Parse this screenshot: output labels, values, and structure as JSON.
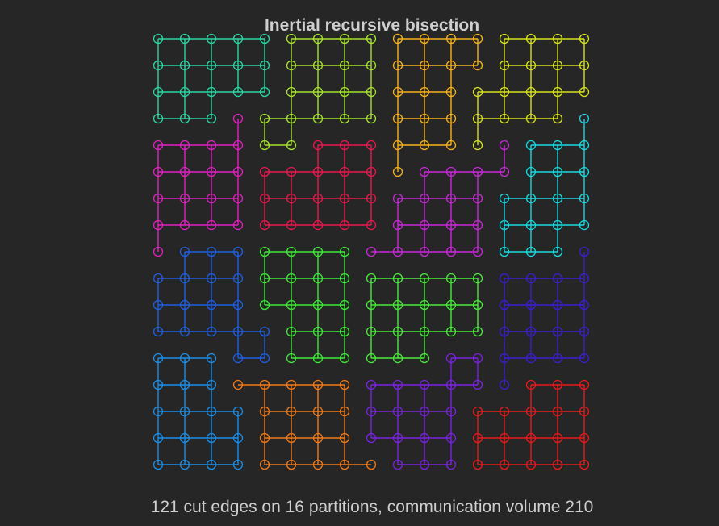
{
  "title": "Inertial recursive  bisection",
  "caption": "121 cut edges on 16 partitions, communication volume 210",
  "grid": {
    "rows": 17,
    "cols": 17
  },
  "partitions": [
    {
      "id": 0,
      "color": "#2bd6a3",
      "cells": [
        [
          0,
          0
        ],
        [
          0,
          1
        ],
        [
          0,
          2
        ],
        [
          0,
          3
        ],
        [
          0,
          4
        ],
        [
          1,
          0
        ],
        [
          1,
          1
        ],
        [
          1,
          2
        ],
        [
          1,
          3
        ],
        [
          1,
          4
        ],
        [
          2,
          0
        ],
        [
          2,
          1
        ],
        [
          2,
          2
        ],
        [
          2,
          3
        ],
        [
          2,
          4
        ],
        [
          3,
          0
        ],
        [
          3,
          1
        ],
        [
          3,
          2
        ]
      ]
    },
    {
      "id": 1,
      "color": "#a6e22e",
      "cells": [
        [
          0,
          5
        ],
        [
          0,
          6
        ],
        [
          0,
          7
        ],
        [
          0,
          8
        ],
        [
          1,
          5
        ],
        [
          1,
          6
        ],
        [
          1,
          7
        ],
        [
          1,
          8
        ],
        [
          2,
          5
        ],
        [
          2,
          6
        ],
        [
          2,
          7
        ],
        [
          2,
          8
        ],
        [
          3,
          4
        ],
        [
          3,
          5
        ],
        [
          3,
          6
        ],
        [
          3,
          7
        ],
        [
          3,
          8
        ],
        [
          4,
          4
        ],
        [
          4,
          5
        ]
      ]
    },
    {
      "id": 2,
      "color": "#f5b21b",
      "cells": [
        [
          0,
          9
        ],
        [
          0,
          10
        ],
        [
          0,
          11
        ],
        [
          0,
          12
        ],
        [
          1,
          9
        ],
        [
          1,
          10
        ],
        [
          1,
          11
        ],
        [
          1,
          12
        ],
        [
          2,
          9
        ],
        [
          2,
          10
        ],
        [
          2,
          11
        ],
        [
          3,
          9
        ],
        [
          3,
          10
        ],
        [
          3,
          11
        ],
        [
          4,
          9
        ],
        [
          4,
          10
        ],
        [
          4,
          11
        ],
        [
          5,
          9
        ]
      ]
    },
    {
      "id": 3,
      "color": "#d6e21c",
      "cells": [
        [
          0,
          13
        ],
        [
          0,
          14
        ],
        [
          0,
          15
        ],
        [
          0,
          16
        ],
        [
          1,
          13
        ],
        [
          1,
          14
        ],
        [
          1,
          15
        ],
        [
          1,
          16
        ],
        [
          2,
          12
        ],
        [
          2,
          13
        ],
        [
          2,
          14
        ],
        [
          2,
          15
        ],
        [
          2,
          16
        ],
        [
          3,
          12
        ],
        [
          3,
          13
        ],
        [
          3,
          14
        ],
        [
          3,
          15
        ],
        [
          4,
          12
        ]
      ]
    },
    {
      "id": 4,
      "color": "#e020c0",
      "cells": [
        [
          3,
          3
        ],
        [
          4,
          0
        ],
        [
          4,
          1
        ],
        [
          4,
          2
        ],
        [
          4,
          3
        ],
        [
          5,
          0
        ],
        [
          5,
          1
        ],
        [
          5,
          2
        ],
        [
          5,
          3
        ],
        [
          6,
          0
        ],
        [
          6,
          1
        ],
        [
          6,
          2
        ],
        [
          6,
          3
        ],
        [
          7,
          0
        ],
        [
          7,
          1
        ],
        [
          7,
          2
        ],
        [
          7,
          3
        ],
        [
          8,
          0
        ]
      ]
    },
    {
      "id": 5,
      "color": "#e8184f",
      "cells": [
        [
          4,
          6
        ],
        [
          4,
          7
        ],
        [
          4,
          8
        ],
        [
          5,
          4
        ],
        [
          5,
          5
        ],
        [
          5,
          6
        ],
        [
          5,
          7
        ],
        [
          5,
          8
        ],
        [
          6,
          4
        ],
        [
          6,
          5
        ],
        [
          6,
          6
        ],
        [
          6,
          7
        ],
        [
          6,
          8
        ],
        [
          7,
          4
        ],
        [
          7,
          5
        ],
        [
          7,
          6
        ],
        [
          7,
          7
        ],
        [
          7,
          8
        ]
      ]
    },
    {
      "id": 6,
      "color": "#c828d8",
      "cells": [
        [
          4,
          13
        ],
        [
          5,
          10
        ],
        [
          5,
          11
        ],
        [
          5,
          12
        ],
        [
          5,
          13
        ],
        [
          6,
          9
        ],
        [
          6,
          10
        ],
        [
          6,
          11
        ],
        [
          6,
          12
        ],
        [
          7,
          9
        ],
        [
          7,
          10
        ],
        [
          7,
          11
        ],
        [
          7,
          12
        ],
        [
          8,
          8
        ],
        [
          8,
          9
        ],
        [
          8,
          10
        ],
        [
          8,
          11
        ],
        [
          8,
          12
        ]
      ]
    },
    {
      "id": 7,
      "color": "#18d8e0",
      "cells": [
        [
          3,
          16
        ],
        [
          4,
          14
        ],
        [
          4,
          15
        ],
        [
          4,
          16
        ],
        [
          5,
          14
        ],
        [
          5,
          15
        ],
        [
          5,
          16
        ],
        [
          6,
          13
        ],
        [
          6,
          14
        ],
        [
          6,
          15
        ],
        [
          6,
          16
        ],
        [
          7,
          13
        ],
        [
          7,
          14
        ],
        [
          7,
          15
        ],
        [
          7,
          16
        ],
        [
          8,
          13
        ],
        [
          8,
          14
        ],
        [
          8,
          15
        ]
      ]
    },
    {
      "id": 8,
      "color": "#1f5fe0",
      "cells": [
        [
          8,
          1
        ],
        [
          8,
          2
        ],
        [
          8,
          3
        ],
        [
          9,
          0
        ],
        [
          9,
          1
        ],
        [
          9,
          2
        ],
        [
          9,
          3
        ],
        [
          10,
          0
        ],
        [
          10,
          1
        ],
        [
          10,
          2
        ],
        [
          10,
          3
        ],
        [
          11,
          0
        ],
        [
          11,
          1
        ],
        [
          11,
          2
        ],
        [
          11,
          3
        ],
        [
          11,
          4
        ],
        [
          12,
          3
        ],
        [
          12,
          4
        ]
      ]
    },
    {
      "id": 9,
      "color": "#3ee838",
      "cells": [
        [
          8,
          4
        ],
        [
          8,
          5
        ],
        [
          8,
          6
        ],
        [
          8,
          7
        ],
        [
          9,
          4
        ],
        [
          9,
          5
        ],
        [
          9,
          6
        ],
        [
          9,
          7
        ],
        [
          10,
          4
        ],
        [
          10,
          5
        ],
        [
          10,
          6
        ],
        [
          10,
          7
        ],
        [
          11,
          5
        ],
        [
          11,
          6
        ],
        [
          11,
          7
        ],
        [
          12,
          5
        ],
        [
          12,
          6
        ],
        [
          12,
          7
        ]
      ]
    },
    {
      "id": 10,
      "color": "#48ea3a",
      "cells": [
        [
          9,
          8
        ],
        [
          9,
          9
        ],
        [
          9,
          10
        ],
        [
          9,
          11
        ],
        [
          9,
          12
        ],
        [
          10,
          8
        ],
        [
          10,
          9
        ],
        [
          10,
          10
        ],
        [
          10,
          11
        ],
        [
          10,
          12
        ],
        [
          11,
          8
        ],
        [
          11,
          9
        ],
        [
          11,
          10
        ],
        [
          11,
          11
        ],
        [
          11,
          12
        ],
        [
          12,
          8
        ],
        [
          12,
          9
        ],
        [
          12,
          10
        ]
      ]
    },
    {
      "id": 11,
      "color": "#3a1fd0",
      "cells": [
        [
          8,
          16
        ],
        [
          9,
          13
        ],
        [
          9,
          14
        ],
        [
          9,
          15
        ],
        [
          9,
          16
        ],
        [
          10,
          13
        ],
        [
          10,
          14
        ],
        [
          10,
          15
        ],
        [
          10,
          16
        ],
        [
          11,
          13
        ],
        [
          11,
          14
        ],
        [
          11,
          15
        ],
        [
          11,
          16
        ],
        [
          12,
          13
        ],
        [
          12,
          14
        ],
        [
          12,
          15
        ],
        [
          12,
          16
        ],
        [
          13,
          13
        ]
      ]
    },
    {
      "id": 12,
      "color": "#1a8ee8",
      "cells": [
        [
          12,
          0
        ],
        [
          12,
          1
        ],
        [
          12,
          2
        ],
        [
          13,
          0
        ],
        [
          13,
          1
        ],
        [
          13,
          2
        ],
        [
          14,
          0
        ],
        [
          14,
          1
        ],
        [
          14,
          2
        ],
        [
          14,
          3
        ],
        [
          15,
          0
        ],
        [
          15,
          1
        ],
        [
          15,
          2
        ],
        [
          15,
          3
        ],
        [
          16,
          0
        ],
        [
          16,
          1
        ],
        [
          16,
          2
        ],
        [
          16,
          3
        ]
      ]
    },
    {
      "id": 13,
      "color": "#f07a1a",
      "cells": [
        [
          13,
          3
        ],
        [
          13,
          4
        ],
        [
          13,
          5
        ],
        [
          13,
          6
        ],
        [
          13,
          7
        ],
        [
          14,
          4
        ],
        [
          14,
          5
        ],
        [
          14,
          6
        ],
        [
          14,
          7
        ],
        [
          15,
          4
        ],
        [
          15,
          5
        ],
        [
          15,
          6
        ],
        [
          15,
          7
        ],
        [
          16,
          4
        ],
        [
          16,
          5
        ],
        [
          16,
          6
        ],
        [
          16,
          7
        ],
        [
          16,
          8
        ]
      ]
    },
    {
      "id": 14,
      "color": "#7a22e0",
      "cells": [
        [
          12,
          11
        ],
        [
          12,
          12
        ],
        [
          13,
          8
        ],
        [
          13,
          9
        ],
        [
          13,
          10
        ],
        [
          13,
          11
        ],
        [
          13,
          12
        ],
        [
          14,
          8
        ],
        [
          14,
          9
        ],
        [
          14,
          10
        ],
        [
          14,
          11
        ],
        [
          15,
          8
        ],
        [
          15,
          9
        ],
        [
          15,
          10
        ],
        [
          15,
          11
        ],
        [
          16,
          9
        ],
        [
          16,
          10
        ],
        [
          16,
          11
        ]
      ]
    },
    {
      "id": 15,
      "color": "#e81a1a",
      "cells": [
        [
          13,
          14
        ],
        [
          13,
          15
        ],
        [
          13,
          16
        ],
        [
          14,
          12
        ],
        [
          14,
          13
        ],
        [
          14,
          14
        ],
        [
          14,
          15
        ],
        [
          14,
          16
        ],
        [
          15,
          12
        ],
        [
          15,
          13
        ],
        [
          15,
          14
        ],
        [
          15,
          15
        ],
        [
          15,
          16
        ],
        [
          16,
          12
        ],
        [
          16,
          13
        ],
        [
          16,
          14
        ],
        [
          16,
          15
        ],
        [
          16,
          16
        ]
      ]
    }
  ]
}
